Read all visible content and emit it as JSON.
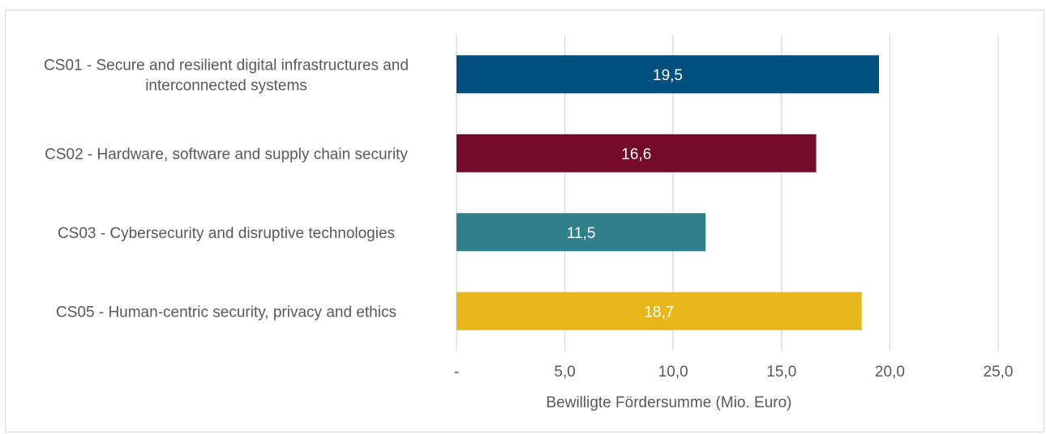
{
  "chart_data": {
    "type": "bar",
    "orientation": "horizontal",
    "categories": [
      "CS01 - Secure and resilient digital infrastructures and interconnected systems",
      "CS02 - Hardware, software and supply chain security",
      "CS03 - Cybersecurity and disruptive technologies",
      "CS05 - Human-centric security, privacy and ethics"
    ],
    "category_lines": [
      [
        "CS01 - Secure and resilient digital infrastructures and",
        "interconnected systems"
      ],
      [
        "CS02 - Hardware, software and supply chain security"
      ],
      [
        "CS03 - Cybersecurity and disruptive technologies"
      ],
      [
        "CS05 - Human-centric security, privacy and ethics"
      ]
    ],
    "values": [
      19.5,
      16.6,
      11.5,
      18.7
    ],
    "data_labels": [
      "19,5",
      "16,6",
      "11,5",
      "18,7"
    ],
    "bar_colors": [
      "#004f7f",
      "#740b2b",
      "#327f8c",
      "#e8b71b"
    ],
    "title": "",
    "xlabel": "Bewilligte Fördersumme (Mio. Euro)",
    "ylabel": "",
    "xlim": [
      0,
      25
    ],
    "xticks": [
      0,
      5,
      10,
      15,
      20,
      25
    ],
    "xtick_labels": [
      "-",
      "5,0",
      "10,0",
      "15,0",
      "20,0",
      "25,0"
    ],
    "grid": "vertical",
    "legend": "none"
  }
}
